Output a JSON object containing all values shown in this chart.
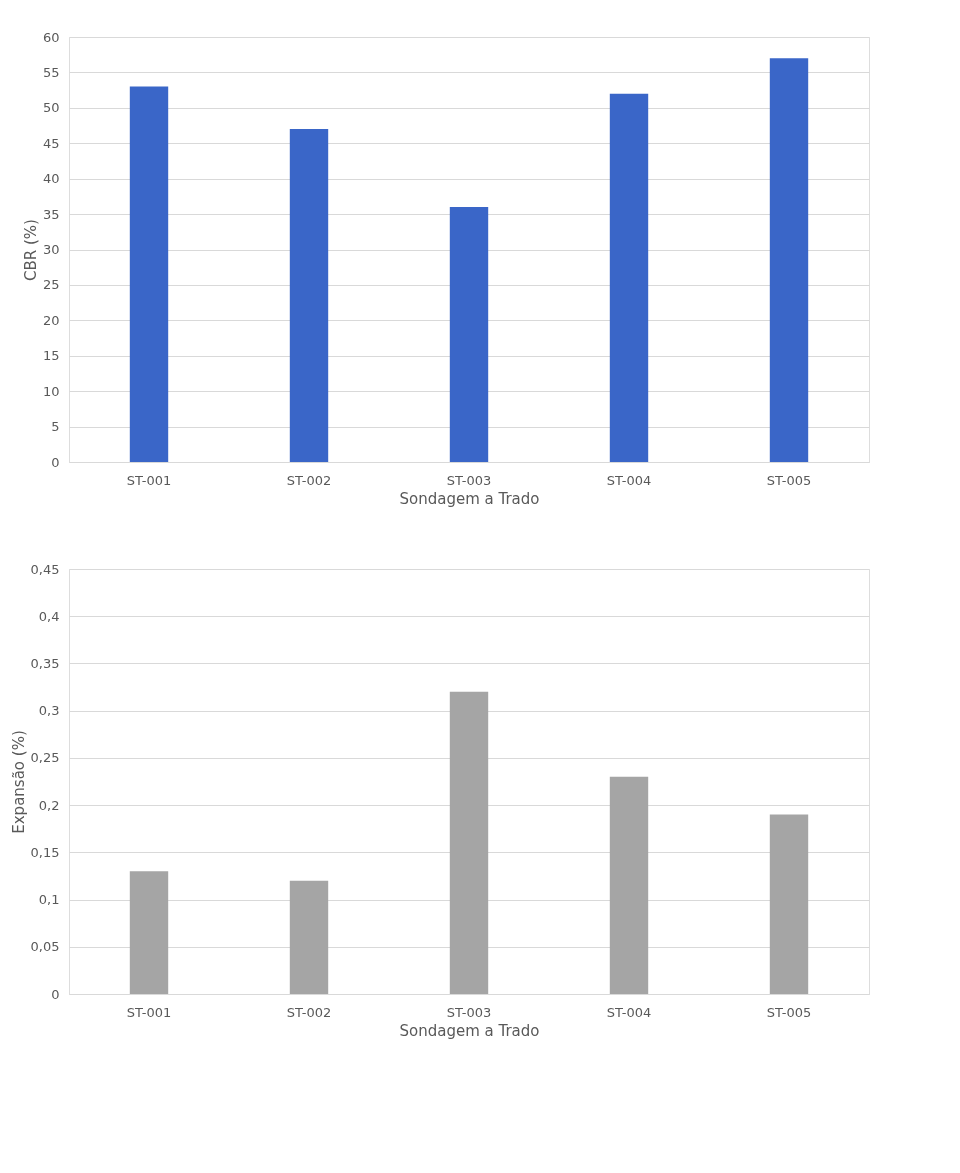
{
  "chart_data": [
    {
      "type": "bar",
      "xlabel": "Sondagem a Trado",
      "ylabel": "CBR (%)",
      "categories": [
        "ST-001",
        "ST-002",
        "ST-003",
        "ST-004",
        "ST-005"
      ],
      "values": [
        53,
        47,
        36,
        52,
        57
      ],
      "color": "#3a66c8",
      "ylim": [
        0,
        60
      ],
      "yticks": [
        0,
        5,
        10,
        15,
        20,
        25,
        30,
        35,
        40,
        45,
        50,
        55,
        60
      ],
      "grid": "y",
      "legend": false
    },
    {
      "type": "bar",
      "xlabel": "Sondagem a Trado",
      "ylabel": "Expansão (%)",
      "categories": [
        "ST-001",
        "ST-002",
        "ST-003",
        "ST-004",
        "ST-005"
      ],
      "values": [
        0.13,
        0.12,
        0.32,
        0.23,
        0.19
      ],
      "color": "#a5a5a5",
      "ylim": [
        0,
        0.45
      ],
      "yticks": [
        0,
        {
          "value": 0.05,
          "label": "0,05"
        },
        {
          "value": 0.1,
          "label": "0,1"
        },
        {
          "value": 0.15,
          "label": "0,15"
        },
        {
          "value": 0.2,
          "label": "0,2"
        },
        {
          "value": 0.25,
          "label": "0,25"
        },
        {
          "value": 0.3,
          "label": "0,3"
        },
        {
          "value": 0.35,
          "label": "0,35"
        },
        {
          "value": 0.4,
          "label": "0,4"
        },
        {
          "value": 0.45,
          "label": "0,45"
        }
      ],
      "grid": "y",
      "legend": false
    }
  ]
}
